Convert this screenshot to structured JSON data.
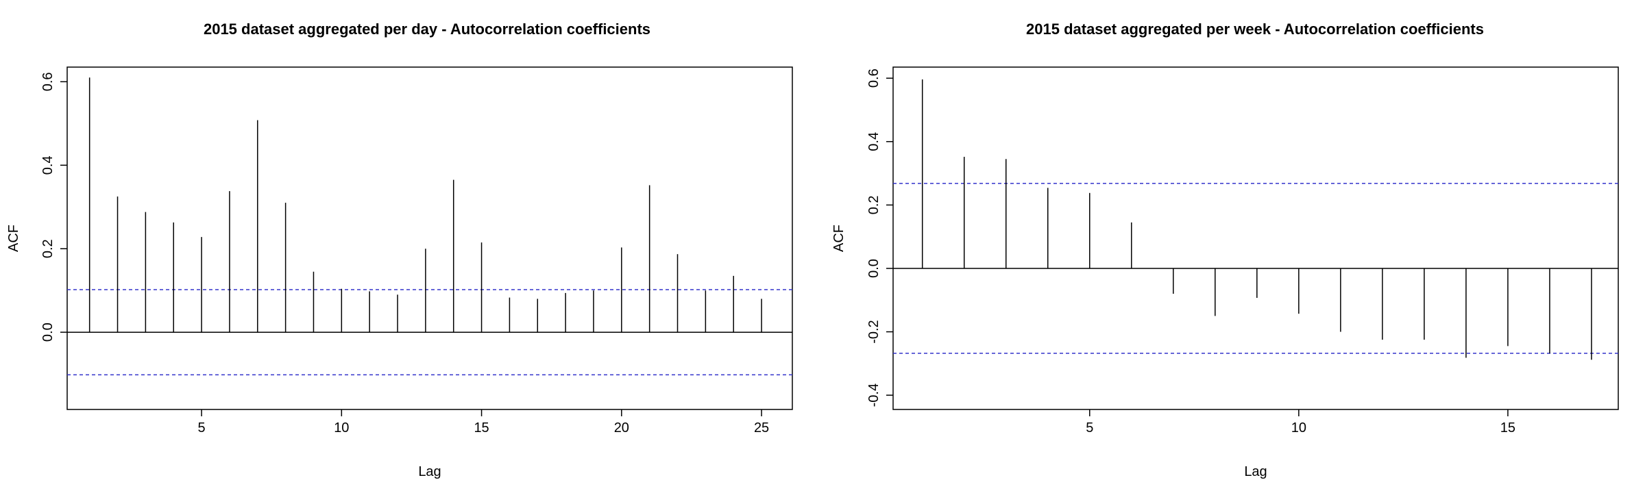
{
  "chart_data": [
    {
      "type": "bar",
      "subtype": "acf-stem",
      "title": "2015 dataset aggregated per day - Autocorrelation coefficients",
      "xlabel": "Lag",
      "ylabel": "ACF",
      "x": [
        1,
        2,
        3,
        4,
        5,
        6,
        7,
        8,
        9,
        10,
        11,
        12,
        13,
        14,
        15,
        16,
        17,
        18,
        19,
        20,
        21,
        22,
        23,
        24,
        25
      ],
      "values": [
        0.61,
        0.325,
        0.288,
        0.263,
        0.228,
        0.338,
        0.508,
        0.31,
        0.145,
        0.104,
        0.098,
        0.09,
        0.2,
        0.365,
        0.215,
        0.083,
        0.08,
        0.094,
        0.1,
        0.203,
        0.352,
        0.187,
        0.1,
        0.135,
        0.08
      ],
      "confidence_band": [
        0.102,
        -0.102
      ],
      "xticks": [
        "5",
        "10",
        "15",
        "20",
        "25"
      ],
      "yticks": [
        "0.0",
        "0.2",
        "0.4",
        "0.6"
      ],
      "xlim": [
        0.2,
        26.1
      ],
      "ylim": [
        -0.185,
        0.635
      ],
      "band_color": "#3333cc",
      "stem_color": "#000000"
    },
    {
      "type": "bar",
      "subtype": "acf-stem",
      "title": "2015 dataset aggregated per week - Autocorrelation coefficients",
      "xlabel": "Lag",
      "ylabel": "ACF",
      "x": [
        1,
        2,
        3,
        4,
        5,
        6,
        7,
        8,
        9,
        10,
        11,
        12,
        13,
        14,
        15,
        16,
        17
      ],
      "values": [
        0.596,
        0.352,
        0.345,
        0.254,
        0.238,
        0.145,
        -0.08,
        -0.15,
        -0.093,
        -0.143,
        -0.2,
        -0.225,
        -0.225,
        -0.282,
        -0.245,
        -0.268,
        -0.288
      ],
      "confidence_band": [
        0.268,
        -0.268
      ],
      "xticks": [
        "5",
        "10",
        "15"
      ],
      "yticks": [
        "-0.4",
        "-0.2",
        "0.0",
        "0.2",
        "0.4",
        "0.6"
      ],
      "xlim": [
        0.3,
        17.64
      ],
      "ylim": [
        -0.445,
        0.635
      ],
      "band_color": "#3333cc",
      "stem_color": "#000000"
    }
  ]
}
